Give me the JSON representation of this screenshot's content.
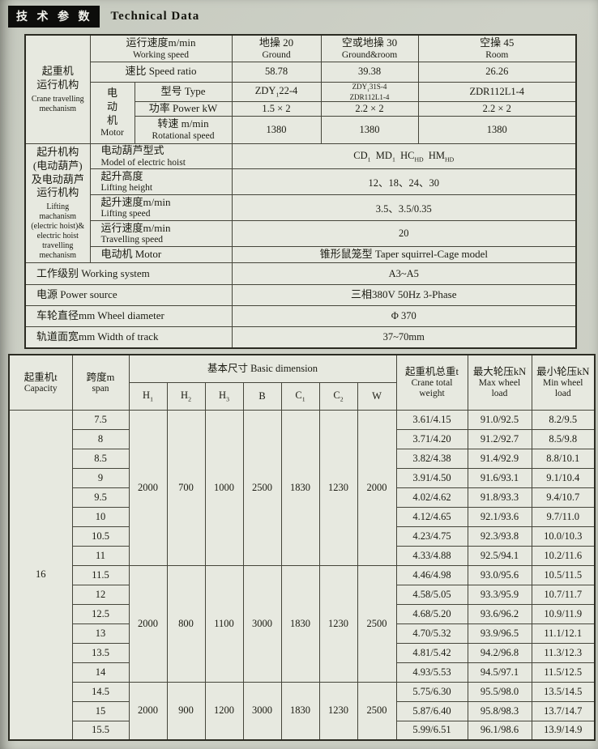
{
  "title": {
    "zh": "技 术 参 数",
    "en": "Technical Data"
  },
  "top": {
    "sec_crane": {
      "zh": "起重机\n运行机构",
      "en": "Crane travelling\nmechanism"
    },
    "sec_hoist": {
      "zh": "起升机构\n(电动葫芦)\n及电动葫芦\n运行机构",
      "en": "Lifting machanism\n(electric hoist)&\nelectric hoist\ntravelling\nmechanism"
    },
    "working_speed": {
      "label_zh": "运行速度m/min",
      "label_en": "Working speed",
      "cols": [
        {
          "zh": "地操 20",
          "en": "Ground"
        },
        {
          "zh": "空或地操 30",
          "en": "Ground&room"
        },
        {
          "zh": "空操 45",
          "en": "Room"
        }
      ]
    },
    "speed_ratio": {
      "label": "速比 Speed ratio",
      "values": [
        "58.78",
        "39.38",
        "26.26"
      ]
    },
    "motor": {
      "zh": "电\n动\n机",
      "en": "Motor"
    },
    "type": {
      "label": "型号 Type",
      "values_html": [
        "ZDY<sub>1</sub>22-4",
        "ZDY<sub>1</sub>31S-4<br>ZDR112L1-4",
        "ZDR112L1-4"
      ]
    },
    "power": {
      "label": "功率 Power kW",
      "values": [
        "1.5 × 2",
        "2.2 × 2",
        "2.2 × 2"
      ]
    },
    "rot_speed": {
      "label_zh": "转速 m/min",
      "label_en": "Rotational speed",
      "values": [
        "1380",
        "1380",
        "1380"
      ]
    },
    "hoist_model": {
      "label_zh": "电动葫芦型式",
      "label_en": "Model of electric hoist",
      "value_html": "CD<sub>1</sub>&nbsp; MD<sub>1</sub>&nbsp; HC<sub>HD</sub>&nbsp; HM<sub>HD</sub>"
    },
    "lift_height": {
      "label_zh": "起升高度",
      "label_en": "Lifting height",
      "value": "12、18、24、30"
    },
    "lift_speed": {
      "label_zh": "起升速度m/min",
      "label_en": "Lifting speed",
      "value": "3.5、3.5/0.35"
    },
    "travel_speed": {
      "label_zh": "运行速度m/min",
      "label_en": "Travelling speed",
      "value": "20"
    },
    "hoist_motor": {
      "label": "电动机 Motor",
      "value": "锥形鼠笼型  Taper squirrel-Cage model"
    },
    "working_system": {
      "label": "工作级别 Working system",
      "value": "A3~A5"
    },
    "power_source": {
      "label": "电源 Power source",
      "value": "三相380V  50Hz  3-Phase"
    },
    "wheel_diameter": {
      "label": "车轮直径mm   Wheel diameter",
      "value": "Φ 370"
    },
    "track_width": {
      "label": "轨道面宽mm   Width of track",
      "value": "37~70mm"
    }
  },
  "bottom": {
    "headers": {
      "capacity_zh": "起重机t",
      "capacity_en": "Capacity",
      "span_zh": "跨度m",
      "span_en": "span",
      "basic": "基本尺寸 Basic dimension",
      "dims_html": [
        "H<sub>1</sub>",
        "H<sub>2</sub>",
        "H<sub>3</sub>",
        "B",
        "C<sub>1</sub>",
        "C<sub>2</sub>",
        "W"
      ],
      "total_zh": "起重机总重t",
      "total_en": "Crane total\nweight",
      "max_zh": "最大轮压kN",
      "max_en": "Max wheel\nload",
      "min_zh": "最小轮压kN",
      "min_en": "Min wheel\nload"
    },
    "capacity": "16",
    "groups": [
      {
        "dims": [
          "2000",
          "700",
          "1000",
          "2500",
          "1830",
          "1230",
          "2000"
        ],
        "rows": [
          {
            "span": "7.5",
            "weight": "3.61/4.15",
            "max": "91.0/92.5",
            "min": "8.2/9.5"
          },
          {
            "span": "8",
            "weight": "3.71/4.20",
            "max": "91.2/92.7",
            "min": "8.5/9.8"
          },
          {
            "span": "8.5",
            "weight": "3.82/4.38",
            "max": "91.4/92.9",
            "min": "8.8/10.1"
          },
          {
            "span": "9",
            "weight": "3.91/4.50",
            "max": "91.6/93.1",
            "min": "9.1/10.4"
          },
          {
            "span": "9.5",
            "weight": "4.02/4.62",
            "max": "91.8/93.3",
            "min": "9.4/10.7"
          },
          {
            "span": "10",
            "weight": "4.12/4.65",
            "max": "92.1/93.6",
            "min": "9.7/11.0"
          },
          {
            "span": "10.5",
            "weight": "4.23/4.75",
            "max": "92.3/93.8",
            "min": "10.0/10.3"
          },
          {
            "span": "11",
            "weight": "4.33/4.88",
            "max": "92.5/94.1",
            "min": "10.2/11.6"
          }
        ]
      },
      {
        "dims": [
          "2000",
          "800",
          "1100",
          "3000",
          "1830",
          "1230",
          "2500"
        ],
        "rows": [
          {
            "span": "11.5",
            "weight": "4.46/4.98",
            "max": "93.0/95.6",
            "min": "10.5/11.5"
          },
          {
            "span": "12",
            "weight": "4.58/5.05",
            "max": "93.3/95.9",
            "min": "10.7/11.7"
          },
          {
            "span": "12.5",
            "weight": "4.68/5.20",
            "max": "93.6/96.2",
            "min": "10.9/11.9"
          },
          {
            "span": "13",
            "weight": "4.70/5.32",
            "max": "93.9/96.5",
            "min": "11.1/12.1"
          },
          {
            "span": "13.5",
            "weight": "4.81/5.42",
            "max": "94.2/96.8",
            "min": "11.3/12.3"
          },
          {
            "span": "14",
            "weight": "4.93/5.53",
            "max": "94.5/97.1",
            "min": "11.5/12.5"
          }
        ]
      },
      {
        "dims": [
          "2000",
          "900",
          "1200",
          "3000",
          "1830",
          "1230",
          "2500"
        ],
        "rows": [
          {
            "span": "14.5",
            "weight": "5.75/6.30",
            "max": "95.5/98.0",
            "min": "13.5/14.5"
          },
          {
            "span": "15",
            "weight": "5.87/6.40",
            "max": "95.8/98.3",
            "min": "13.7/14.7"
          },
          {
            "span": "15.5",
            "weight": "5.99/6.51",
            "max": "96.1/98.6",
            "min": "13.9/14.9"
          }
        ]
      }
    ]
  }
}
